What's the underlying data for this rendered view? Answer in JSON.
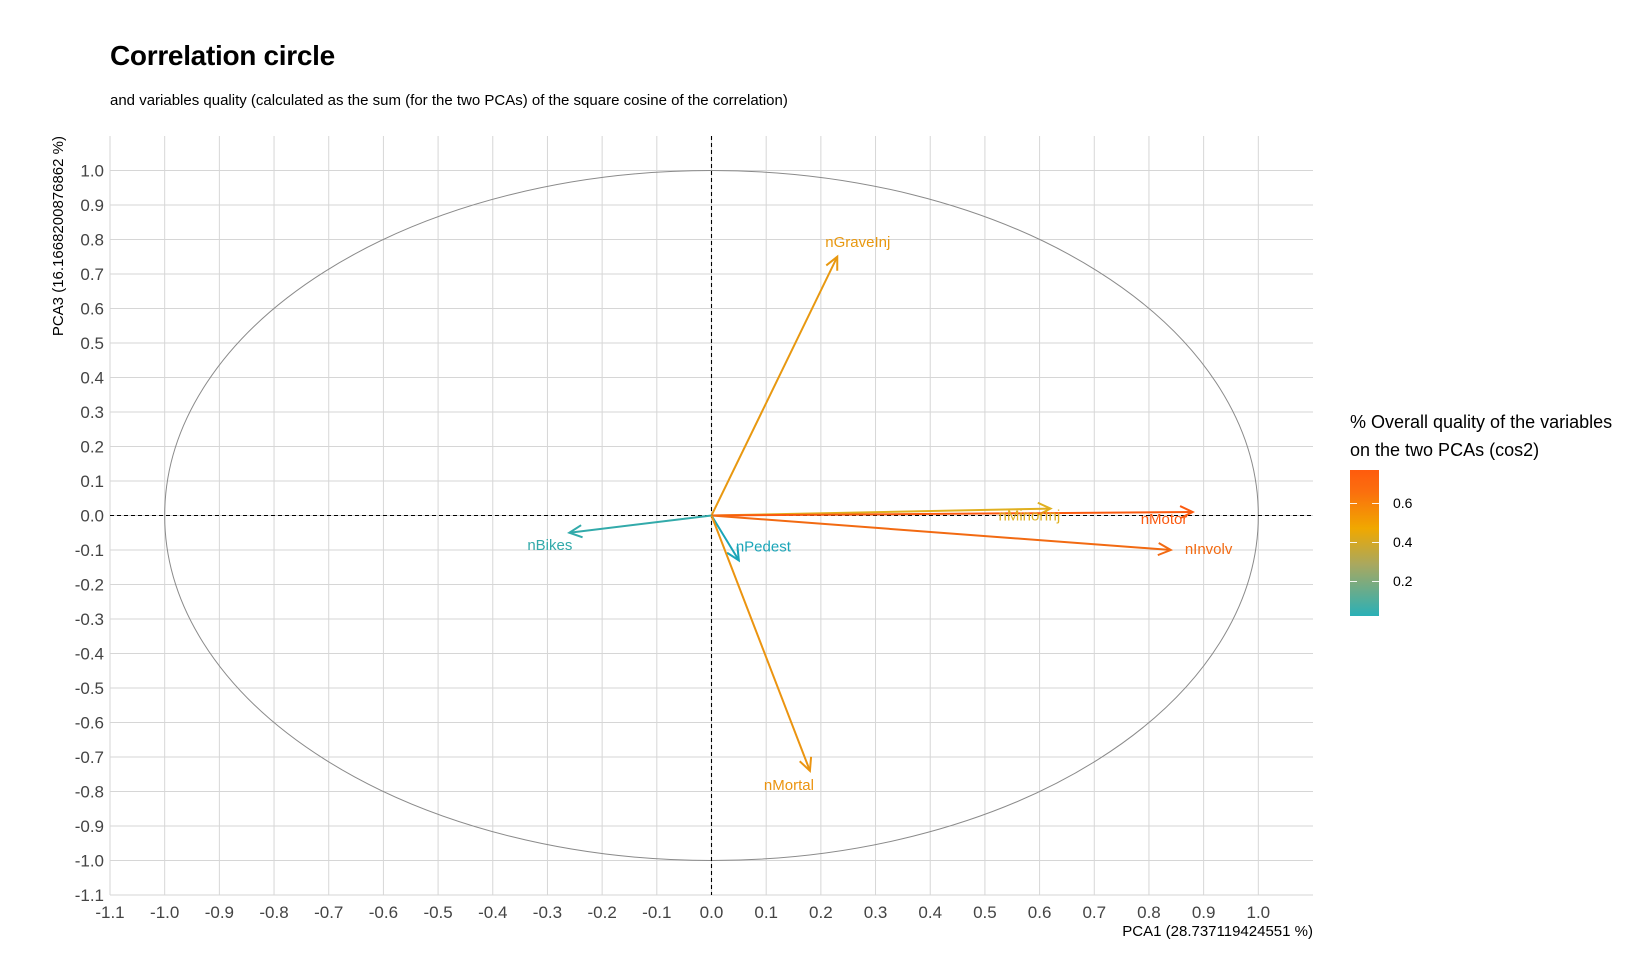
{
  "title": "Correlation circle",
  "subtitle": "and variables quality (calculated as the sum (for the two PCAs) of the square cosine of the correlation)",
  "legend": {
    "title_line1": "% Overall quality of the variables",
    "title_line2": "on the two PCAs (cos2)",
    "ticks": [
      "0.6",
      "0.4",
      "0.2"
    ],
    "tick_values": [
      0.6,
      0.4,
      0.2
    ],
    "range": [
      0.02,
      0.77
    ],
    "colors": [
      "#2ab0b7",
      "#a8a860",
      "#f0a800",
      "#fb6f0e",
      "#ff5b0d"
    ]
  },
  "chart_data": {
    "type": "scatter",
    "title": "Correlation circle",
    "subtitle": "and variables quality (calculated as the sum (for the two PCAs) of the square cosine of the correlation)",
    "xlabel": "PCA1 (28.737119424551 %)",
    "ylabel": "PCA3 (16.166820087686​2 %)",
    "xlim": [
      -1.1,
      1.1
    ],
    "ylim": [
      -1.1,
      1.1
    ],
    "x_ticks": [
      "-1.1",
      "-1.0",
      "-0.9",
      "-0.8",
      "-0.7",
      "-0.6",
      "-0.5",
      "-0.4",
      "-0.3",
      "-0.2",
      "-0.1",
      "0.0",
      "0.1",
      "0.2",
      "0.3",
      "0.4",
      "0.5",
      "0.6",
      "0.7",
      "0.8",
      "0.9",
      "1.0"
    ],
    "y_ticks": [
      "1.0",
      "0.9",
      "0.8",
      "0.7",
      "0.6",
      "0.5",
      "0.4",
      "0.3",
      "0.2",
      "0.1",
      "0.0",
      "-0.1",
      "-0.2",
      "-0.3",
      "-0.4",
      "-0.5",
      "-0.6",
      "-0.7",
      "-0.8",
      "-0.9",
      "-1.0",
      "-1.1"
    ],
    "grid": true,
    "unit_circle": true,
    "legend_position": "right",
    "arrows": [
      {
        "name": "nGraveInj",
        "x": 0.23,
        "y": 0.75,
        "cos2": 0.62,
        "color": "#e89810"
      },
      {
        "name": "nMinorInj",
        "x": 0.62,
        "y": 0.02,
        "cos2": 0.38,
        "color": "#e0b020"
      },
      {
        "name": "nMotor",
        "x": 0.88,
        "y": 0.01,
        "cos2": 0.77,
        "color": "#fb5a10"
      },
      {
        "name": "nInvolv",
        "x": 0.84,
        "y": -0.1,
        "cos2": 0.72,
        "color": "#f26a12"
      },
      {
        "name": "nBikes",
        "x": -0.26,
        "y": -0.05,
        "cos2": 0.07,
        "color": "#32aaaa"
      },
      {
        "name": "nPedest",
        "x": 0.05,
        "y": -0.13,
        "cos2": 0.02,
        "color": "#1aa5b8"
      },
      {
        "name": "nMortal",
        "x": 0.18,
        "y": -0.74,
        "cos2": 0.57,
        "color": "#eb9410"
      }
    ]
  }
}
